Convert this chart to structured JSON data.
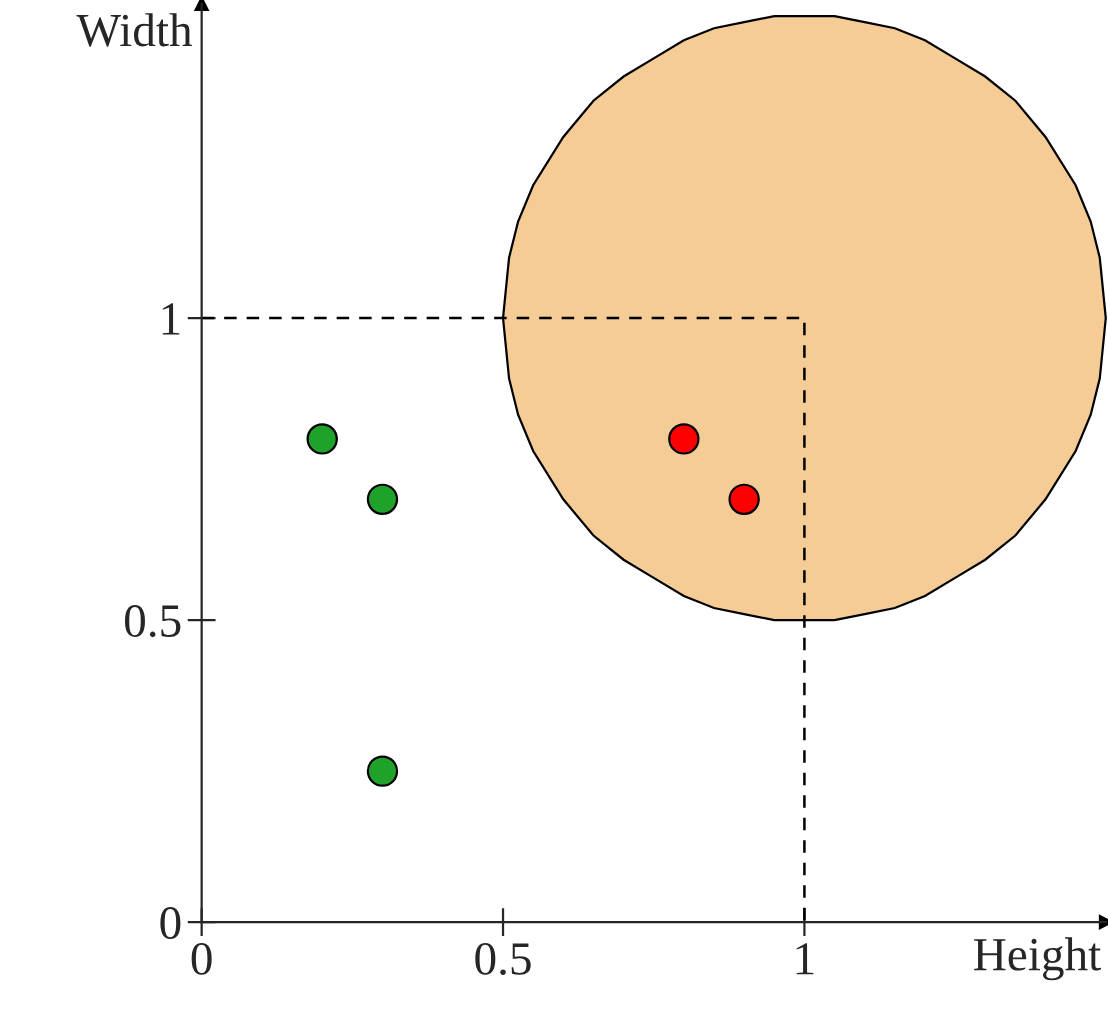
{
  "chart_data": {
    "type": "scatter",
    "xlabel": "Height",
    "ylabel": "Width",
    "xlim": [
      0,
      1.5
    ],
    "ylim": [
      0,
      1.52
    ],
    "xticks": [
      0,
      0.5,
      1
    ],
    "yticks": [
      0,
      0.5,
      1
    ],
    "grid": false,
    "legend": false,
    "series": [
      {
        "type": "area",
        "color": "#f5cc96",
        "x": [
          0.5,
          0.51,
          0.525,
          0.55,
          0.6,
          0.65,
          0.7,
          0.75,
          0.8,
          0.85,
          0.9,
          0.95,
          1,
          1.05,
          1.1,
          1.15,
          1.2,
          1.25,
          1.3,
          1.35,
          1.4,
          1.45,
          1.475,
          1.49,
          1.5,
          1.49,
          1.475,
          1.45,
          1.4,
          1.35,
          1.3,
          1.25,
          1.2,
          1.15,
          1.1,
          1.05,
          1,
          0.95,
          0.9,
          0.85,
          0.8,
          0.75,
          0.7,
          0.65,
          0.6,
          0.55,
          0.525,
          0.51
        ],
        "values": [
          1,
          1.1,
          1.16,
          1.22,
          1.3,
          1.36,
          1.4,
          1.43,
          1.46,
          1.48,
          1.49,
          1.5,
          1.5,
          1.5,
          1.49,
          1.48,
          1.46,
          1.43,
          1.4,
          1.36,
          1.3,
          1.22,
          1.16,
          1.1,
          1,
          0.9,
          0.84,
          0.78,
          0.7,
          0.64,
          0.6,
          0.57,
          0.54,
          0.52,
          0.51,
          0.5,
          0.5,
          0.5,
          0.51,
          0.52,
          0.54,
          0.57,
          0.6,
          0.64,
          0.7,
          0.78,
          0.84,
          0.9
        ]
      },
      {
        "type": "line",
        "color": "#000000",
        "line_style": "dashed",
        "x": [
          0,
          1,
          1
        ],
        "values": [
          1,
          1,
          0
        ]
      },
      {
        "marker": "circle",
        "color": "#1fa22a",
        "x": [
          0.2,
          0.3,
          0.3
        ],
        "values": [
          0.8,
          0.7,
          0.25
        ]
      },
      {
        "marker": "circle",
        "color": "#ff0000",
        "x": [
          0.8,
          0.9
        ],
        "values": [
          0.8,
          0.7
        ]
      }
    ]
  }
}
